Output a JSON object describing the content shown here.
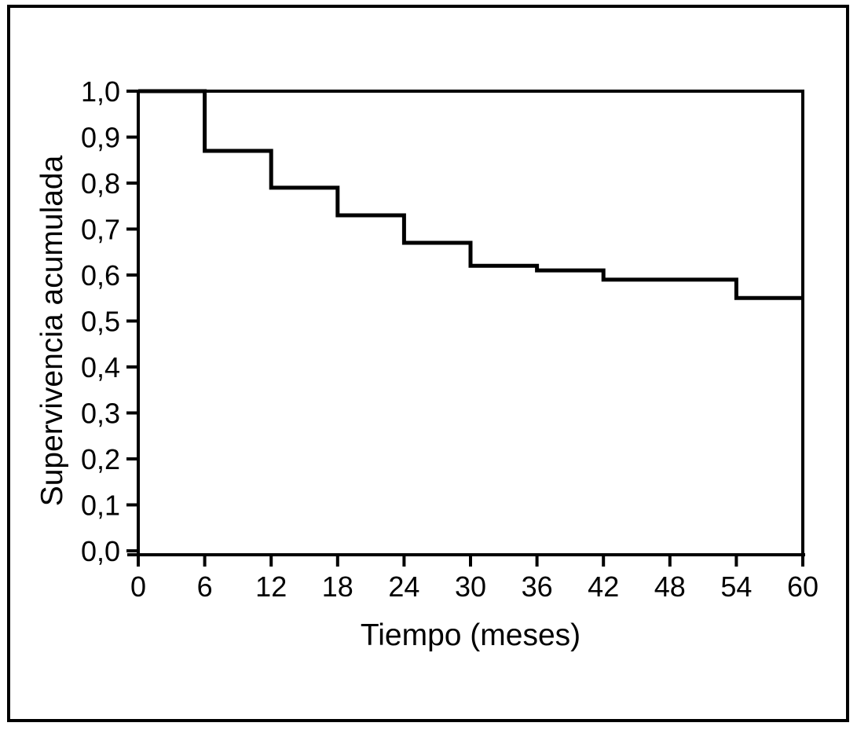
{
  "figure": {
    "kind": "kaplan_meier_survival_curve",
    "background_color": "#ffffff",
    "line_color": "#000000",
    "text_color": "#000000"
  },
  "chart_data": {
    "type": "line",
    "line_style": "step-post",
    "title": "",
    "xlabel": "Tiempo (meses)",
    "ylabel": "Supervivencia acumulada",
    "xlim": [
      0,
      60
    ],
    "ylim": [
      0,
      1
    ],
    "grid": false,
    "legend": "none",
    "frame": {
      "top": true,
      "right": true
    },
    "x_ticks": [
      0,
      6,
      12,
      18,
      24,
      30,
      36,
      42,
      48,
      54,
      60
    ],
    "x_tick_labels": [
      "0",
      "6",
      "12",
      "18",
      "24",
      "30",
      "36",
      "42",
      "48",
      "54",
      "60"
    ],
    "y_ticks": [
      0,
      0.1,
      0.2,
      0.3,
      0.4,
      0.5,
      0.6,
      0.7,
      0.8,
      0.9,
      1
    ],
    "y_tick_labels": [
      "0,0",
      "0,1",
      "0,2",
      "0,3",
      "0,4",
      "0,5",
      "0,6",
      "0,7",
      "0,8",
      "0,9",
      "1,0"
    ],
    "series": [
      {
        "name": "Supervivencia acumulada",
        "step_events": [
          {
            "x": 0,
            "y": 1.0
          },
          {
            "x": 6,
            "y": 0.87
          },
          {
            "x": 12,
            "y": 0.79
          },
          {
            "x": 18,
            "y": 0.73
          },
          {
            "x": 24,
            "y": 0.67
          },
          {
            "x": 30,
            "y": 0.62
          },
          {
            "x": 36,
            "y": 0.61
          },
          {
            "x": 42,
            "y": 0.59
          },
          {
            "x": 54,
            "y": 0.55
          }
        ],
        "end_x": 60,
        "end_y": 0.55
      }
    ]
  }
}
